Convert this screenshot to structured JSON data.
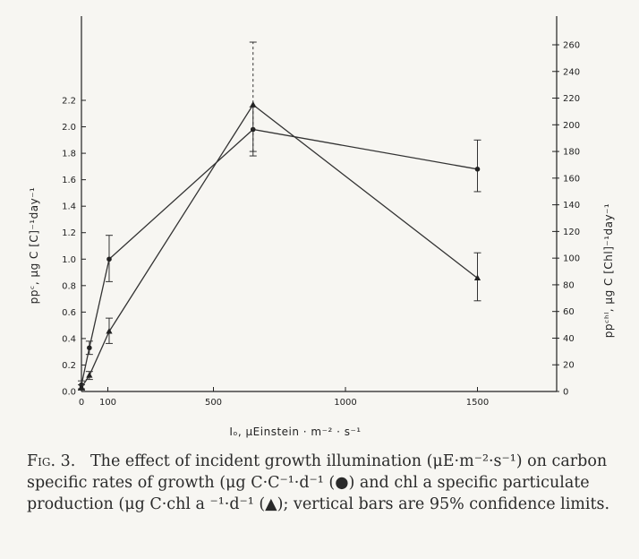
{
  "chart_data": {
    "type": "line",
    "x": [
      0,
      30,
      105,
      650,
      1500
    ],
    "xticks": [
      0,
      100,
      500,
      1000,
      1500
    ],
    "xlim": [
      0,
      1800
    ],
    "xlabel": "Iₒ, μEinstein · m⁻² · s⁻¹",
    "ylabel_left": "ppᶜ, μg C [C]⁻¹day⁻¹",
    "ylabel_right": "ppᶜʰˡ, μg C [Chl]⁻¹day⁻¹",
    "ylim_left": [
      0,
      2.2
    ],
    "yticks_left": [
      "0.0",
      "0.2",
      "0.4",
      "0.6",
      "0.8",
      "1.0",
      "1.2",
      "1.4",
      "1.6",
      "1.8",
      "2.0",
      "2.2"
    ],
    "ylim_right": [
      0,
      260
    ],
    "yticks_right": [
      "0",
      "20",
      "40",
      "60",
      "80",
      "100",
      "120",
      "140",
      "160",
      "180",
      "200",
      "220",
      "240",
      "260"
    ],
    "series": [
      {
        "marker": "circle",
        "axis": "left",
        "x": [
          0,
          30,
          105,
          650,
          1500
        ],
        "values": [
          0.05,
          0.33,
          1.0,
          1.98,
          1.68
        ],
        "error_low": [
          0.02,
          0.28,
          0.83,
          1.78,
          1.51
        ],
        "error_high": [
          0.08,
          0.38,
          1.18,
          2.15,
          1.9
        ]
      },
      {
        "marker": "triangle",
        "axis": "right",
        "x": [
          0,
          30,
          105,
          650,
          1500
        ],
        "values": [
          3,
          12,
          45,
          215,
          85
        ],
        "error_low": [
          1,
          9,
          36,
          180,
          68
        ],
        "error_high": [
          5,
          15,
          55,
          262,
          104
        ]
      }
    ]
  },
  "caption": {
    "fig_label": "Fig. 3.",
    "text": "The effect of incident growth illumination (μE·m⁻²·s⁻¹) on carbon specific rates of growth (μg C·C⁻¹·d⁻¹ (●) and chl a specific particulate production (μg C·chl a ⁻¹·d⁻¹ (▲); vertical bars are 95% confidence limits."
  }
}
